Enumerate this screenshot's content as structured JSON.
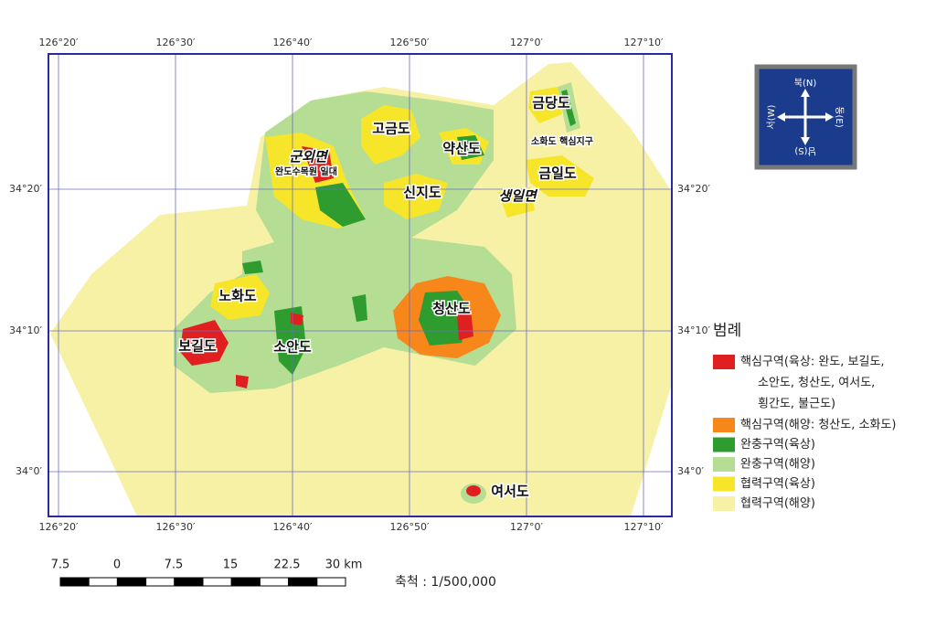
{
  "map": {
    "longitudes": [
      "126°20′",
      "126°30′",
      "126°40′",
      "126°50′",
      "127°0′",
      "127°10′"
    ],
    "latitudes": [
      "34°20′",
      "34°10′",
      "34°0′"
    ],
    "places": [
      "고금도",
      "약산도",
      "금당도",
      "소화도 핵심지구",
      "금일도",
      "군외면",
      "완도수목원 일대",
      "신지도",
      "생일면",
      "노화도",
      "청산도",
      "보길도",
      "소안도",
      "여서도"
    ],
    "compass": {
      "north": "북(N)",
      "east": "동(E)",
      "south": "남(S)",
      "west": "서(W)"
    }
  },
  "legend": {
    "title": "범례",
    "items": [
      [
        "핵심구역(육상: 완도, 보길도,",
        "소안도, 청산도, 여서도,",
        "횡간도, 불근도)"
      ],
      [
        "핵심구역(해양: 청산도, 소화도)"
      ],
      [
        "완충구역(육상)"
      ],
      [
        "완충구역(해양)"
      ],
      [
        "협력구역(육상)"
      ],
      [
        "협력구역(해양)"
      ]
    ]
  },
  "scale": {
    "ticks": [
      "7.5",
      "0",
      "7.5",
      "15",
      "22.5",
      "30 km"
    ],
    "text": "축척 : 1/500,000"
  }
}
